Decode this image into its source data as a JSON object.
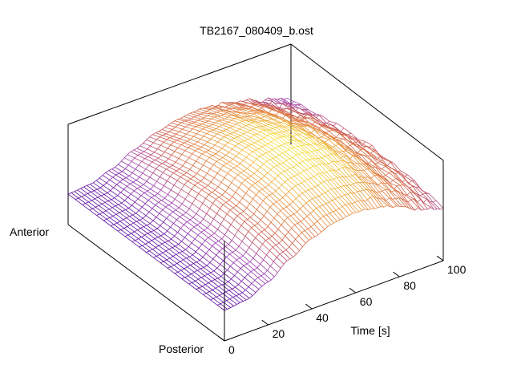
{
  "chart_data": {
    "type": "surface",
    "title": "TB2167_080409_b.ost",
    "xlabel": "Time [s]",
    "xlim": [
      0,
      100
    ],
    "x_ticks": [
      "0",
      "20",
      "40",
      "60",
      "80",
      "100"
    ],
    "y_axis_labels": {
      "anterior": "Anterior",
      "posterior": "Posterior"
    },
    "z_ticks_visible": false,
    "grid": false,
    "legend": "none",
    "colormap": [
      "#5a0fa0",
      "#a040b0",
      "#d0604a",
      "#e89040",
      "#f5e040"
    ],
    "surface_description_points": [
      {
        "time": 0,
        "relative_height": 0.0
      },
      {
        "time": 10,
        "relative_height": 0.05
      },
      {
        "time": 20,
        "relative_height": 0.25
      },
      {
        "time": 30,
        "relative_height": 0.55
      },
      {
        "time": 40,
        "relative_height": 0.8
      },
      {
        "time": 50,
        "relative_height": 0.95
      },
      {
        "time": 60,
        "relative_height": 1.0
      },
      {
        "time": 70,
        "relative_height": 0.95
      },
      {
        "time": 80,
        "relative_height": 0.8
      },
      {
        "time": 90,
        "relative_height": 0.6
      },
      {
        "time": 100,
        "relative_height": 0.45
      }
    ]
  }
}
